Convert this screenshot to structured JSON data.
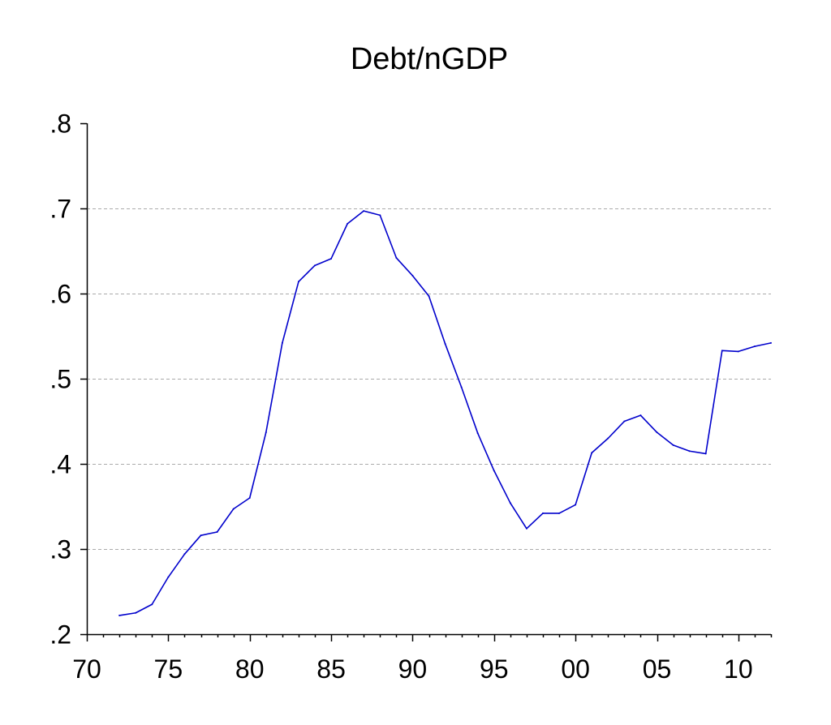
{
  "chart_data": {
    "type": "line",
    "title": "Debt/nGDP",
    "xlabel": "",
    "ylabel": "",
    "x": [
      1972,
      1973,
      1974,
      1975,
      1976,
      1977,
      1978,
      1979,
      1980,
      1981,
      1982,
      1983,
      1984,
      1985,
      1986,
      1987,
      1988,
      1989,
      1990,
      1991,
      1992,
      1993,
      1994,
      1995,
      1996,
      1997,
      1998,
      1999,
      2000,
      2001,
      2002,
      2003,
      2004,
      2005,
      2006,
      2007,
      2008,
      2009,
      2010,
      2011,
      2012
    ],
    "series": [
      {
        "name": "",
        "color": "#0000cc",
        "values": [
          0.222,
          0.225,
          0.235,
          0.267,
          0.294,
          0.316,
          0.32,
          0.347,
          0.36,
          0.437,
          0.542,
          0.614,
          0.633,
          0.641,
          0.682,
          0.697,
          0.692,
          0.642,
          0.621,
          0.597,
          0.541,
          0.49,
          0.436,
          0.392,
          0.354,
          0.324,
          0.342,
          0.342,
          0.352,
          0.413,
          0.43,
          0.45,
          0.457,
          0.437,
          0.422,
          0.415,
          0.412,
          0.533,
          0.532,
          0.538,
          0.542
        ]
      }
    ],
    "xlim": [
      1970,
      2012
    ],
    "ylim": [
      0.2,
      0.8
    ],
    "x_ticks": [
      1970,
      1975,
      1980,
      1985,
      1990,
      1995,
      2000,
      2005,
      2010
    ],
    "x_tick_labels": [
      "70",
      "75",
      "80",
      "85",
      "90",
      "95",
      "00",
      "05",
      "10"
    ],
    "y_ticks": [
      0.2,
      0.3,
      0.4,
      0.5,
      0.6,
      0.7,
      0.8
    ],
    "y_tick_labels": [
      ".2",
      ".3",
      ".4",
      ".5",
      ".6",
      ".7",
      ".8"
    ],
    "grid": "horizontal dashed",
    "legend": "none",
    "axis_color": "#000000",
    "grid_color": "#aaaaaa"
  }
}
